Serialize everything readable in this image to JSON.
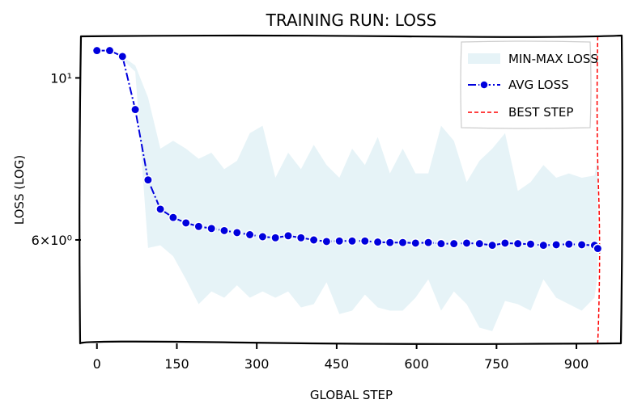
{
  "chart_data": {
    "type": "line",
    "title": "TRAINING RUN: LOSS",
    "xlabel": "GLOBAL STEP",
    "ylabel": "LOSS (LOG)",
    "xlim": [
      -30,
      985
    ],
    "ylim": [
      4.33,
      11.4
    ],
    "yscale": "log",
    "xticks": [
      0,
      150,
      300,
      450,
      600,
      750,
      900
    ],
    "xtick_labels": [
      "0",
      "150",
      "300",
      "450",
      "600",
      "750",
      "900"
    ],
    "yticks": [
      10,
      6
    ],
    "ytick_labels": [
      "10¹",
      "6×10⁰"
    ],
    "legend_position": "top-right",
    "colors": {
      "avg": "#0000dd",
      "band": "#add8e6",
      "best": "#ff0000"
    },
    "series": [
      {
        "name": "AVG LOSS",
        "x": [
          0,
          24,
          48,
          72,
          96,
          119,
          143,
          167,
          191,
          215,
          239,
          263,
          287,
          311,
          335,
          359,
          383,
          407,
          431,
          455,
          479,
          503,
          527,
          550,
          574,
          598,
          622,
          646,
          670,
          694,
          718,
          742,
          766,
          790,
          814,
          838,
          862,
          886,
          910,
          934,
          940
        ],
        "y": [
          10.9,
          10.9,
          10.7,
          9.05,
          7.25,
          6.61,
          6.44,
          6.33,
          6.26,
          6.22,
          6.18,
          6.14,
          6.1,
          6.06,
          6.04,
          6.08,
          6.04,
          6.0,
          5.97,
          5.98,
          5.98,
          5.98,
          5.96,
          5.95,
          5.95,
          5.94,
          5.95,
          5.93,
          5.93,
          5.94,
          5.93,
          5.9,
          5.94,
          5.93,
          5.92,
          5.9,
          5.91,
          5.92,
          5.91,
          5.9,
          5.84
        ]
      },
      {
        "name": "MIN-MAX LOSS",
        "type": "band",
        "x": [
          48,
          72,
          96,
          119,
          143,
          167,
          191,
          215,
          239,
          263,
          287,
          311,
          335,
          359,
          383,
          407,
          431,
          455,
          479,
          503,
          527,
          550,
          574,
          598,
          622,
          646,
          670,
          694,
          718,
          742,
          766,
          790,
          814,
          838,
          862,
          886,
          910,
          934,
          940
        ],
        "upper": [
          10.7,
          10.4,
          9.4,
          8.0,
          8.2,
          8.0,
          7.75,
          7.9,
          7.5,
          7.7,
          8.4,
          8.6,
          7.3,
          7.9,
          7.5,
          8.1,
          7.6,
          7.3,
          8.0,
          7.6,
          8.3,
          7.4,
          8.0,
          7.4,
          7.4,
          8.6,
          8.2,
          7.2,
          7.7,
          8.0,
          8.4,
          7.0,
          7.2,
          7.6,
          7.3,
          7.4,
          7.3,
          7.35,
          7.8
        ],
        "lower": [
          10.6,
          10.2,
          5.85,
          5.9,
          5.7,
          5.3,
          4.9,
          5.1,
          5.0,
          5.2,
          5.0,
          5.1,
          5.0,
          5.1,
          4.85,
          4.9,
          5.25,
          4.75,
          4.8,
          5.05,
          4.85,
          4.8,
          4.8,
          5.0,
          5.3,
          4.8,
          5.1,
          4.9,
          4.55,
          4.5,
          4.95,
          4.9,
          4.8,
          5.3,
          5.0,
          4.9,
          4.8,
          5.0,
          5.4
        ]
      },
      {
        "name": "BEST STEP",
        "type": "vline",
        "x": 940
      }
    ]
  }
}
